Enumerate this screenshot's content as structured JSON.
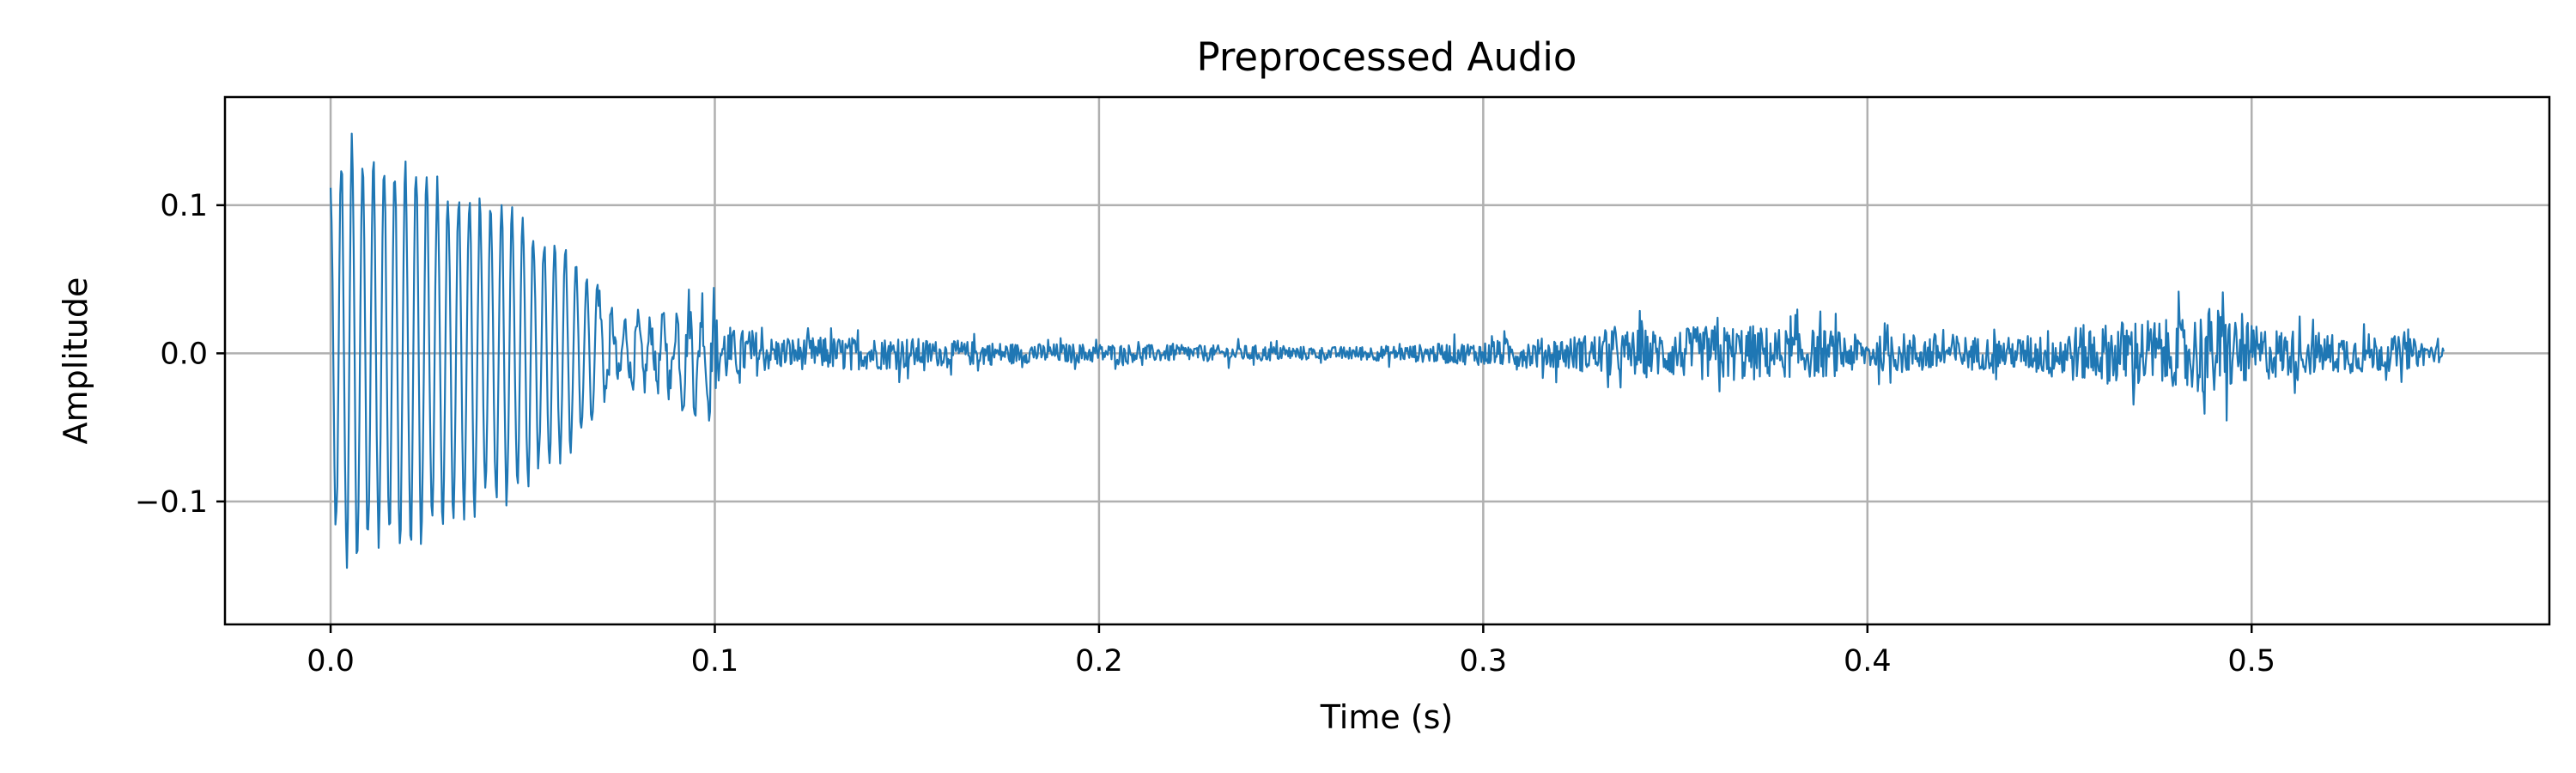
{
  "chart_data": {
    "type": "line",
    "title": "Preprocessed Audio",
    "xlabel": "Time (s)",
    "ylabel": "Amplitude",
    "xlim": [
      -0.0275,
      0.5775
    ],
    "ylim": [
      -0.183,
      0.173
    ],
    "xticks": [
      0.0,
      0.1,
      0.2,
      0.3,
      0.4,
      0.5
    ],
    "xtick_labels": [
      "0.0",
      "0.1",
      "0.2",
      "0.3",
      "0.4",
      "0.5"
    ],
    "yticks": [
      -0.1,
      0.0,
      0.1
    ],
    "ytick_labels": [
      "−0.1",
      "0.0",
      "0.1"
    ],
    "grid": true,
    "legend": "none",
    "series": [
      {
        "color": "#1f77b4",
        "x": [
          0.0,
          0.005,
          0.01,
          0.015,
          0.02,
          0.025,
          0.03,
          0.035,
          0.04,
          0.045,
          0.05,
          0.055,
          0.06,
          0.065,
          0.07,
          0.075,
          0.08,
          0.085,
          0.09,
          0.095,
          0.1,
          0.105,
          0.11,
          0.115,
          0.12,
          0.125,
          0.13,
          0.14,
          0.15,
          0.16,
          0.17,
          0.18,
          0.19,
          0.2,
          0.22,
          0.24,
          0.26,
          0.28,
          0.3,
          0.32,
          0.34,
          0.35,
          0.36,
          0.37,
          0.38,
          0.39,
          0.4,
          0.41,
          0.42,
          0.43,
          0.44,
          0.45,
          0.46,
          0.47,
          0.48,
          0.49,
          0.5,
          0.51,
          0.52,
          0.53,
          0.54,
          0.55
        ],
        "envelope": [
          0.12,
          0.16,
          0.14,
          0.14,
          0.14,
          0.13,
          0.12,
          0.12,
          0.11,
          0.11,
          0.1,
          0.08,
          0.08,
          0.06,
          0.05,
          0.03,
          0.03,
          0.03,
          0.04,
          0.05,
          0.05,
          0.03,
          0.03,
          0.02,
          0.02,
          0.02,
          0.02,
          0.02,
          0.02,
          0.015,
          0.015,
          0.012,
          0.012,
          0.012,
          0.01,
          0.01,
          0.008,
          0.01,
          0.015,
          0.02,
          0.03,
          0.03,
          0.035,
          0.035,
          0.03,
          0.03,
          0.02,
          0.025,
          0.025,
          0.02,
          0.02,
          0.035,
          0.035,
          0.045,
          0.04,
          0.06,
          0.035,
          0.03,
          0.025,
          0.025,
          0.02,
          0.01
        ]
      }
    ]
  }
}
